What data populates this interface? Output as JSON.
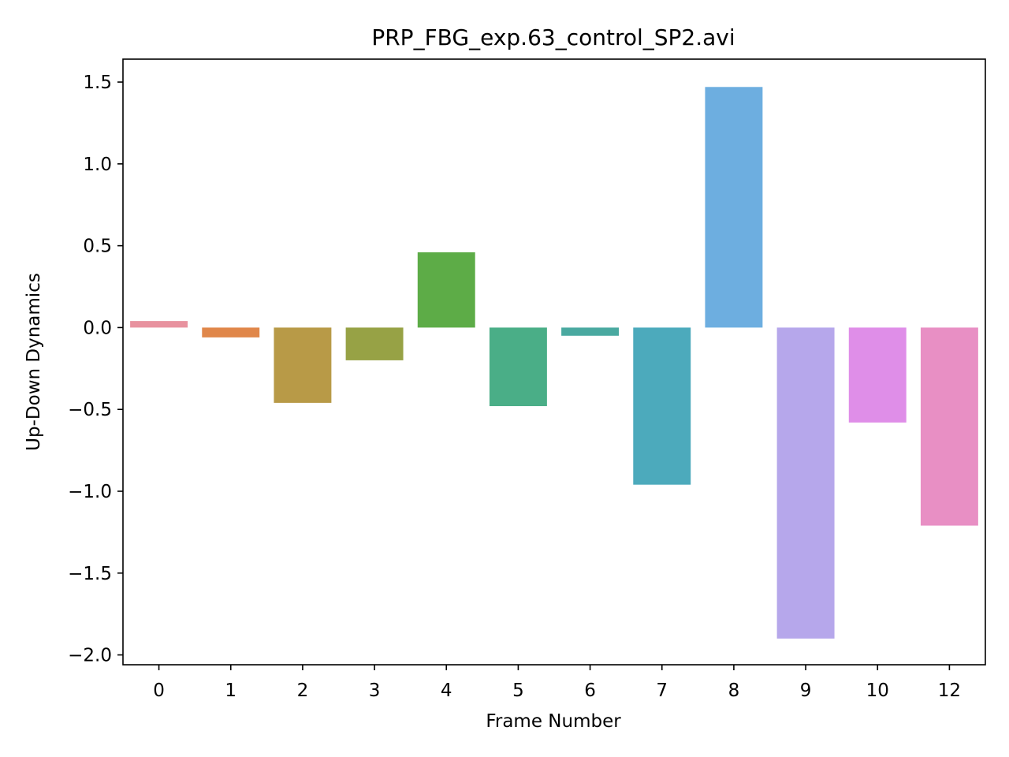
{
  "chart_data": {
    "type": "bar",
    "title": "PRP_FBG_exp.63_control_SP2.avi",
    "xlabel": "Frame Number",
    "ylabel": "Up-Down Dynamics",
    "categories": [
      "0",
      "1",
      "2",
      "3",
      "4",
      "5",
      "6",
      "7",
      "8",
      "9",
      "10",
      "12"
    ],
    "values": [
      0.04,
      -0.06,
      -0.46,
      -0.2,
      0.46,
      -0.48,
      -0.05,
      -0.96,
      1.47,
      -1.9,
      -0.58,
      -1.21
    ],
    "colors": [
      "#e8929f",
      "#e0874a",
      "#b89a47",
      "#97a245",
      "#5dac47",
      "#4aae87",
      "#4aa9a0",
      "#4caabc",
      "#6daee0",
      "#b6a7eb",
      "#df8ee8",
      "#e88fc4"
    ],
    "ylim": [
      -2.06,
      1.64
    ],
    "yticks": [
      1.5,
      1.0,
      0.5,
      0.0,
      -0.5,
      -1.0,
      -1.5,
      -2.0
    ],
    "ytick_labels": [
      "1.5",
      "1.0",
      "0.5",
      "0.0",
      "−0.5",
      "−1.0",
      "−1.5",
      "−2.0"
    ],
    "grid": false,
    "legend": "none"
  }
}
